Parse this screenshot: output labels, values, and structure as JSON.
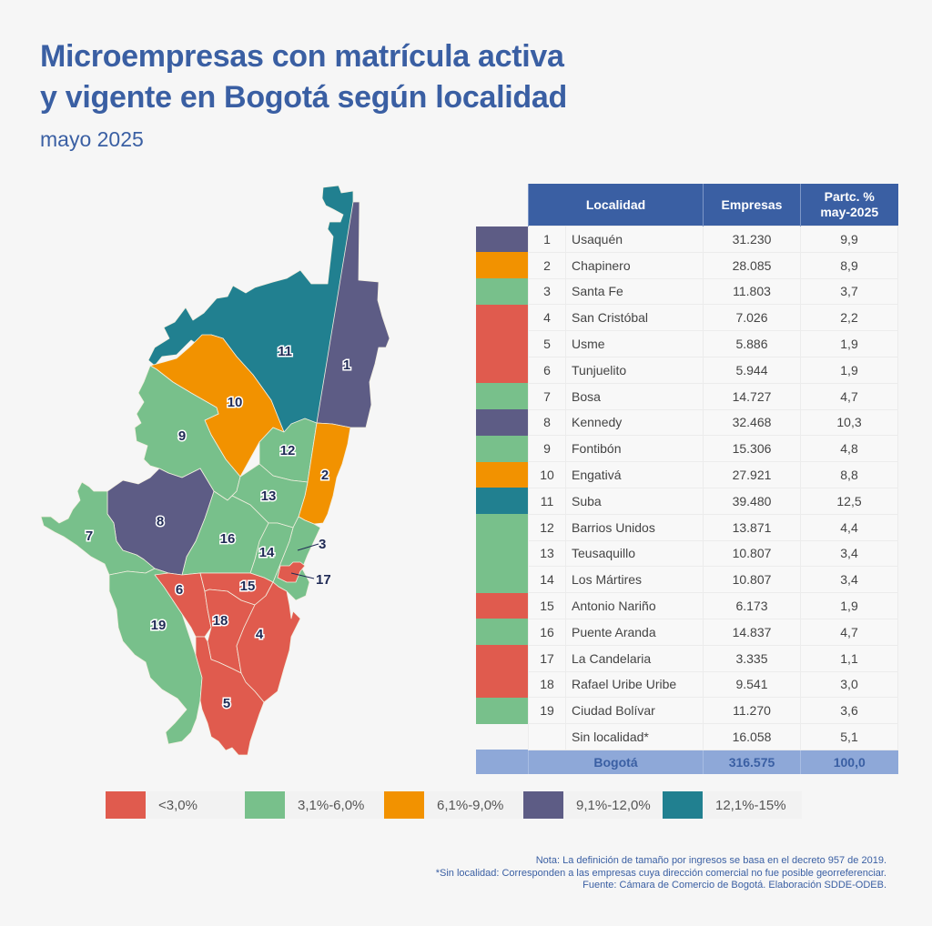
{
  "header": {
    "title_line1": "Microempresas con matrícula activa",
    "title_line2": "y vigente en Bogotá según localidad",
    "subtitle": "mayo 2025"
  },
  "colors": {
    "lt3": "#e05b4e",
    "r3_6": "#78c08b",
    "r6_9": "#f29200",
    "r9_12": "#5d5c85",
    "r12_15": "#218090",
    "header_blue": "#3a5fa3",
    "total_row": "#8ea8d8"
  },
  "table": {
    "headers": {
      "localidad": "Localidad",
      "empresas": "Empresas",
      "partc": "Partc. %",
      "partc2": "may-2025"
    },
    "rows": [
      {
        "n": "1",
        "name": "Usaquén",
        "empresas": "31.230",
        "pct": "9,9",
        "cat": "r9_12"
      },
      {
        "n": "2",
        "name": "Chapinero",
        "empresas": "28.085",
        "pct": "8,9",
        "cat": "r6_9"
      },
      {
        "n": "3",
        "name": "Santa Fe",
        "empresas": "11.803",
        "pct": "3,7",
        "cat": "r3_6"
      },
      {
        "n": "4",
        "name": "San Cristóbal",
        "empresas": "7.026",
        "pct": "2,2",
        "cat": "lt3"
      },
      {
        "n": "5",
        "name": "Usme",
        "empresas": "5.886",
        "pct": "1,9",
        "cat": "lt3"
      },
      {
        "n": "6",
        "name": "Tunjuelito",
        "empresas": "5.944",
        "pct": "1,9",
        "cat": "lt3"
      },
      {
        "n": "7",
        "name": "Bosa",
        "empresas": "14.727",
        "pct": "4,7",
        "cat": "r3_6"
      },
      {
        "n": "8",
        "name": "Kennedy",
        "empresas": "32.468",
        "pct": "10,3",
        "cat": "r9_12"
      },
      {
        "n": "9",
        "name": "Fontibón",
        "empresas": "15.306",
        "pct": "4,8",
        "cat": "r3_6"
      },
      {
        "n": "10",
        "name": "Engativá",
        "empresas": "27.921",
        "pct": "8,8",
        "cat": "r6_9"
      },
      {
        "n": "11",
        "name": "Suba",
        "empresas": "39.480",
        "pct": "12,5",
        "cat": "r12_15"
      },
      {
        "n": "12",
        "name": "Barrios Unidos",
        "empresas": "13.871",
        "pct": "4,4",
        "cat": "r3_6"
      },
      {
        "n": "13",
        "name": "Teusaquillo",
        "empresas": "10.807",
        "pct": "3,4",
        "cat": "r3_6"
      },
      {
        "n": "14",
        "name": "Los Mártires",
        "empresas": "10.807",
        "pct": "3,4",
        "cat": "r3_6"
      },
      {
        "n": "15",
        "name": "Antonio Nariño",
        "empresas": "6.173",
        "pct": "1,9",
        "cat": "lt3"
      },
      {
        "n": "16",
        "name": "Puente Aranda",
        "empresas": "14.837",
        "pct": "4,7",
        "cat": "r3_6"
      },
      {
        "n": "17",
        "name": "La Candelaria",
        "empresas": "3.335",
        "pct": "1,1",
        "cat": "lt3"
      },
      {
        "n": "18",
        "name": "Rafael Uribe Uribe",
        "empresas": "9.541",
        "pct": "3,0",
        "cat": "lt3"
      },
      {
        "n": "19",
        "name": "Ciudad Bolívar",
        "empresas": "11.270",
        "pct": "3,6",
        "cat": "r3_6"
      },
      {
        "n": "",
        "name": "Sin localidad*",
        "empresas": "16.058",
        "pct": "5,1",
        "cat": ""
      }
    ],
    "total": {
      "name": "Bogotá",
      "empresas": "316.575",
      "pct": "100,0"
    }
  },
  "legend": [
    {
      "label": "<3,0%",
      "cat": "lt3"
    },
    {
      "label": "3,1%-6,0%",
      "cat": "r3_6"
    },
    {
      "label": "6,1%-9,0%",
      "cat": "r6_9"
    },
    {
      "label": "9,1%-12,0%",
      "cat": "r9_12"
    },
    {
      "label": "12,1%-15%",
      "cat": "r12_15"
    }
  ],
  "notes": {
    "line1": "Nota: La definición de tamaño por ingresos se basa en el decreto 957 de 2019.",
    "line2": "*Sin localidad: Corresponden a las empresas cuya dirección comercial no fue posible georreferenciar.",
    "line3": "Fuente: Cámara de Comercio de Bogotá. Elaboración SDDE-ODEB."
  },
  "chart_data": {
    "type": "table",
    "title": "Microempresas con matrícula activa y vigente en Bogotá según localidad",
    "subtitle": "mayo 2025",
    "columns": [
      "#",
      "Localidad",
      "Empresas",
      "Partc. % may-2025"
    ],
    "categories": [
      "Usaquén",
      "Chapinero",
      "Santa Fe",
      "San Cristóbal",
      "Usme",
      "Tunjuelito",
      "Bosa",
      "Kennedy",
      "Fontibón",
      "Engativá",
      "Suba",
      "Barrios Unidos",
      "Teusaquillo",
      "Los Mártires",
      "Antonio Nariño",
      "Puente Aranda",
      "La Candelaria",
      "Rafael Uribe Uribe",
      "Ciudad Bolívar",
      "Sin localidad*"
    ],
    "series": [
      {
        "name": "Empresas",
        "values": [
          31230,
          28085,
          11803,
          7026,
          5886,
          5944,
          14727,
          32468,
          15306,
          27921,
          39480,
          13871,
          10807,
          10807,
          6173,
          14837,
          3335,
          9541,
          11270,
          16058
        ]
      },
      {
        "name": "Partc. % may-2025",
        "values": [
          9.9,
          8.9,
          3.7,
          2.2,
          1.9,
          1.9,
          4.7,
          10.3,
          4.8,
          8.8,
          12.5,
          4.4,
          3.4,
          3.4,
          1.9,
          4.7,
          1.1,
          3.0,
          3.6,
          5.1
        ]
      }
    ],
    "total": {
      "name": "Bogotá",
      "empresas": 316575,
      "pct": 100.0
    },
    "map": {
      "type": "choropleth",
      "legend": [
        "<3,0%",
        "3,1%-6,0%",
        "6,1%-9,0%",
        "9,1%-12,0%",
        "12,1%-15%"
      ],
      "legend_placement": "bottom"
    }
  }
}
